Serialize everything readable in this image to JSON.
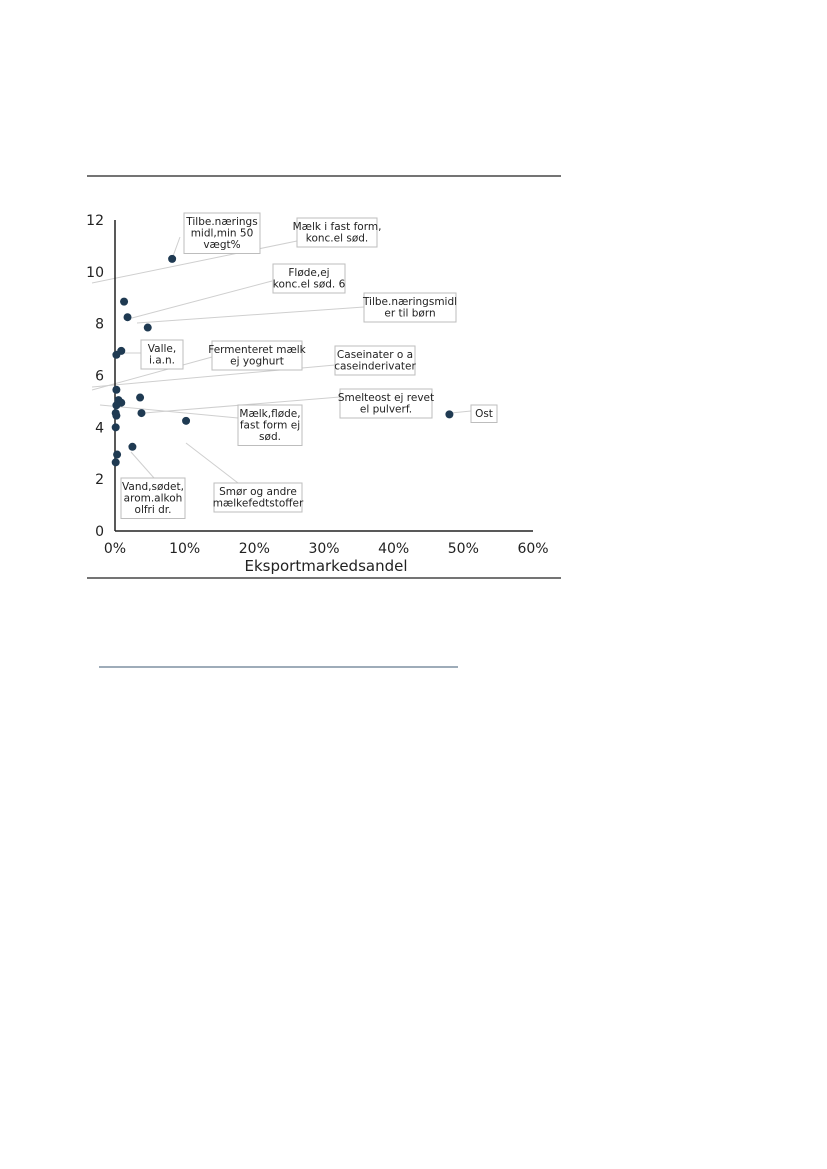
{
  "colors": {
    "point": "#1f3a52",
    "axis": "#222222",
    "leader": "#cfcfcf",
    "box_border": "#bdbdbd",
    "footer_line": "#3d5a73"
  },
  "chart_data": {
    "type": "scatter",
    "title": "",
    "xlabel": "Eksportmarkedsandel",
    "ylabel": "",
    "xlim": [
      0,
      0.6
    ],
    "ylim": [
      0,
      12
    ],
    "x_ticks": [
      0,
      0.1,
      0.2,
      0.3,
      0.4,
      0.5,
      0.6
    ],
    "x_tick_labels": [
      "0%",
      "10%",
      "20%",
      "30%",
      "40%",
      "50%",
      "60%"
    ],
    "y_ticks": [
      0,
      2,
      4,
      6,
      8,
      10,
      12
    ],
    "y_tick_labels": [
      "0",
      "2",
      "4",
      "6",
      "8",
      "10",
      "12"
    ],
    "grid": false,
    "legend": "none",
    "points": [
      {
        "x": 0.082,
        "y": 10.5
      },
      {
        "x": 0.013,
        "y": 8.85
      },
      {
        "x": 0.018,
        "y": 8.25
      },
      {
        "x": 0.047,
        "y": 7.85
      },
      {
        "x": 0.009,
        "y": 6.95
      },
      {
        "x": 0.002,
        "y": 6.8
      },
      {
        "x": 0.002,
        "y": 5.45
      },
      {
        "x": 0.036,
        "y": 5.15
      },
      {
        "x": 0.005,
        "y": 5.05
      },
      {
        "x": 0.009,
        "y": 4.95
      },
      {
        "x": 0.002,
        "y": 4.85
      },
      {
        "x": 0.038,
        "y": 4.55
      },
      {
        "x": 0.001,
        "y": 4.55
      },
      {
        "x": 0.002,
        "y": 4.45
      },
      {
        "x": 0.102,
        "y": 4.25
      },
      {
        "x": 0.001,
        "y": 4.0
      },
      {
        "x": 0.025,
        "y": 3.25
      },
      {
        "x": 0.003,
        "y": 2.95
      },
      {
        "x": 0.001,
        "y": 2.65
      },
      {
        "x": 0.48,
        "y": 4.5
      }
    ],
    "annotations": [
      {
        "lines": [
          "Tilbe.nærings",
          "midl,min 50",
          "vægt%"
        ]
      },
      {
        "lines": [
          "Mælk i fast form,",
          "konc.el sød."
        ]
      },
      {
        "lines": [
          "Fløde,ej",
          "konc.el sød. 6"
        ]
      },
      {
        "lines": [
          "Tilbe.næringsmidl",
          "er til børn"
        ]
      },
      {
        "lines": [
          "Valle,",
          "i.a.n."
        ]
      },
      {
        "lines": [
          "Fermenteret mælk",
          "ej yoghurt"
        ]
      },
      {
        "lines": [
          "Caseinater o a",
          "caseinderivater"
        ]
      },
      {
        "lines": [
          "Smelteost ej revet",
          "el pulverf."
        ]
      },
      {
        "lines": [
          "Ost"
        ]
      },
      {
        "lines": [
          "Mælk,fløde,",
          "fast form ej",
          "sød."
        ]
      },
      {
        "lines": [
          "Vand,sødet,",
          "arom.alkoh",
          "olfri dr."
        ]
      },
      {
        "lines": [
          "Smør og andre",
          "mælkefedtstoffer"
        ]
      }
    ]
  }
}
